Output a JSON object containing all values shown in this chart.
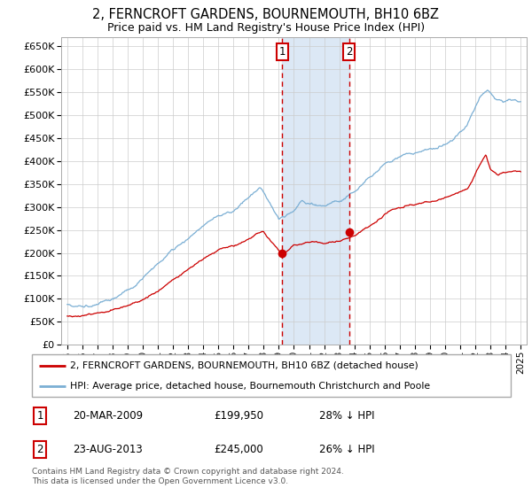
{
  "title": "2, FERNCROFT GARDENS, BOURNEMOUTH, BH10 6BZ",
  "subtitle": "Price paid vs. HM Land Registry's House Price Index (HPI)",
  "legend_line1": "2, FERNCROFT GARDENS, BOURNEMOUTH, BH10 6BZ (detached house)",
  "legend_line2": "HPI: Average price, detached house, Bournemouth Christchurch and Poole",
  "transaction1_date": "20-MAR-2009",
  "transaction1_price": "£199,950",
  "transaction1_hpi": "28% ↓ HPI",
  "transaction2_date": "23-AUG-2013",
  "transaction2_price": "£245,000",
  "transaction2_hpi": "26% ↓ HPI",
  "footnote": "Contains HM Land Registry data © Crown copyright and database right 2024.\nThis data is licensed under the Open Government Licence v3.0.",
  "hpi_color": "#7bafd4",
  "price_color": "#cc0000",
  "marker_color": "#cc0000",
  "dashed_line_color": "#cc0000",
  "shade_color": "#dce8f5",
  "grid_color": "#cccccc",
  "ylim": [
    0,
    670000
  ],
  "yticks": [
    0,
    50000,
    100000,
    150000,
    200000,
    250000,
    300000,
    350000,
    400000,
    450000,
    500000,
    550000,
    600000,
    650000
  ],
  "transaction1_x": 2009.22,
  "transaction2_x": 2013.65,
  "transaction1_y": 199950,
  "transaction2_y": 245000,
  "xlim_left": 1994.6,
  "xlim_right": 2025.4
}
